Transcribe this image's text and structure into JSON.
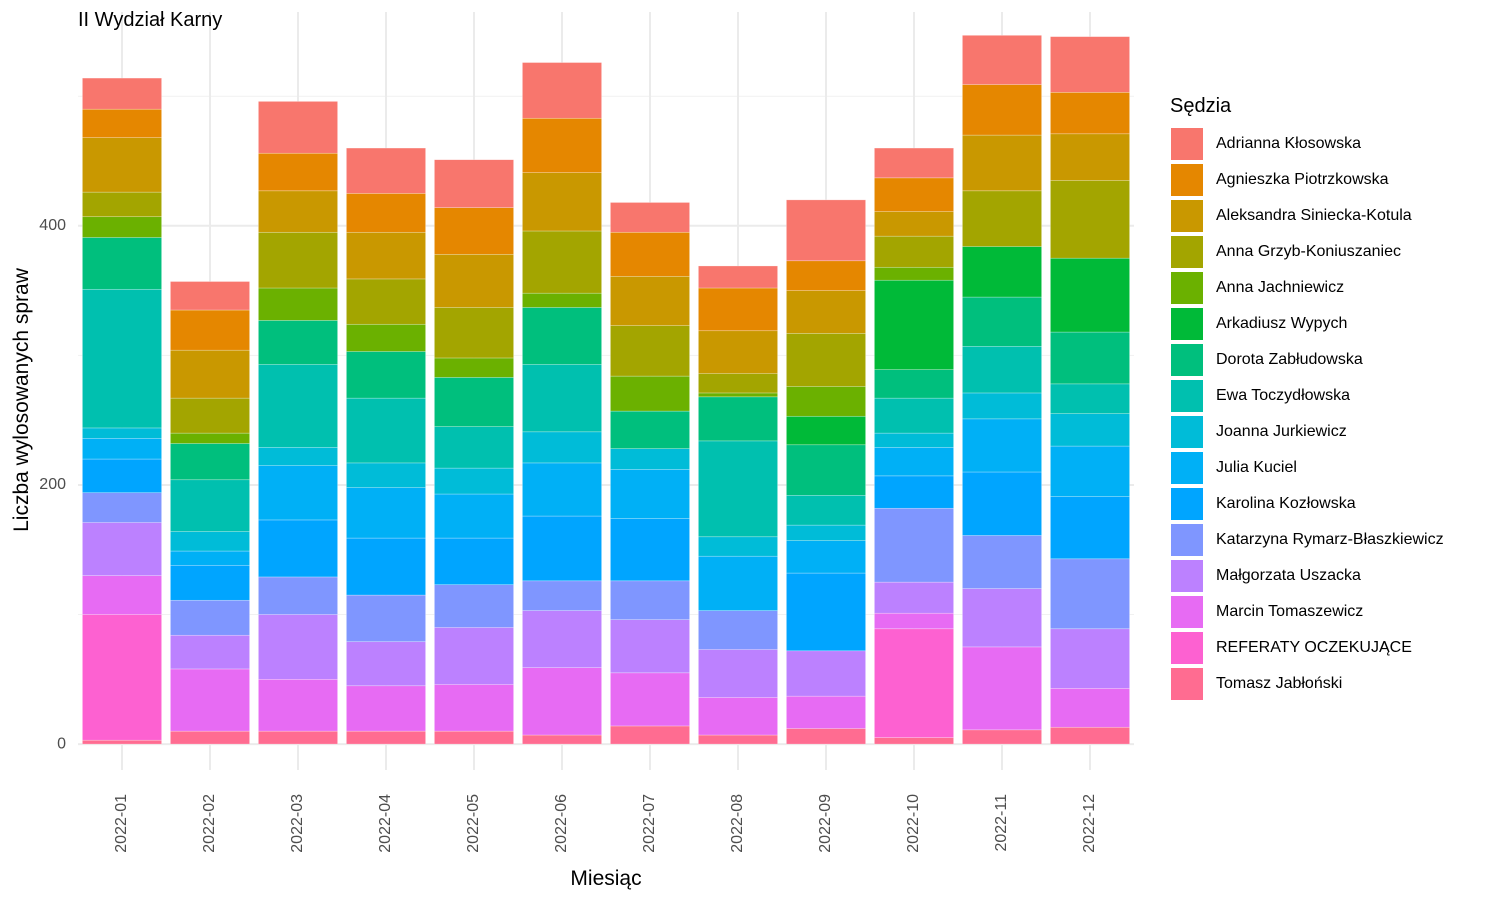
{
  "chart_data": {
    "type": "bar",
    "stacked": true,
    "title": "II Wydział Karny",
    "xlabel": "Miesiąc",
    "ylabel": "Liczba wylosowanych spraw",
    "ylim": [
      -20,
      565
    ],
    "yticks": [
      0,
      200,
      400
    ],
    "grid": true,
    "legend_position": "right",
    "legend_title": "Sędzia",
    "categories": [
      "2022-01",
      "2022-02",
      "2022-03",
      "2022-04",
      "2022-05",
      "2022-06",
      "2022-07",
      "2022-08",
      "2022-09",
      "2022-10",
      "2022-11",
      "2022-12"
    ],
    "series": [
      {
        "name": "Adrianna Kłosowska",
        "color": "#F8766D",
        "values": [
          24,
          22,
          40,
          35,
          37,
          43,
          23,
          17,
          47,
          23,
          38,
          43
        ]
      },
      {
        "name": "Agnieszka Piotrzkowska",
        "color": "#E58700",
        "values": [
          22,
          31,
          29,
          30,
          36,
          42,
          34,
          33,
          23,
          26,
          39,
          32
        ]
      },
      {
        "name": "Aleksandra Siniecka-Kotula",
        "color": "#C99800",
        "values": [
          42,
          37,
          32,
          36,
          41,
          45,
          38,
          33,
          33,
          19,
          43,
          36
        ]
      },
      {
        "name": "Anna Grzyb-Koniuszaniec",
        "color": "#A3A500",
        "values": [
          19,
          27,
          43,
          35,
          39,
          48,
          39,
          15,
          41,
          24,
          43,
          60
        ]
      },
      {
        "name": "Anna Jachniewicz",
        "color": "#6BB100",
        "values": [
          16,
          8,
          25,
          21,
          15,
          11,
          27,
          3,
          23,
          10,
          0,
          0
        ]
      },
      {
        "name": "Arkadiusz Wypych",
        "color": "#00BA38",
        "values": [
          0,
          0,
          0,
          0,
          0,
          0,
          0,
          0,
          22,
          69,
          39,
          57
        ]
      },
      {
        "name": "Dorota Zabłudowska",
        "color": "#00BF7D",
        "values": [
          40,
          28,
          34,
          36,
          38,
          44,
          29,
          34,
          39,
          22,
          38,
          40
        ]
      },
      {
        "name": "Ewa Toczydłowska",
        "color": "#00C0AF",
        "values": [
          107,
          40,
          64,
          50,
          32,
          52,
          0,
          74,
          23,
          27,
          36,
          23
        ]
      },
      {
        "name": "Joanna Jurkiewicz",
        "color": "#00BCD8",
        "values": [
          8,
          15,
          14,
          19,
          20,
          24,
          16,
          15,
          12,
          11,
          20,
          25
        ]
      },
      {
        "name": "Julia Kuciel",
        "color": "#00B0F6",
        "values": [
          16,
          11,
          42,
          39,
          34,
          41,
          38,
          42,
          25,
          22,
          41,
          39
        ]
      },
      {
        "name": "Karolina Kozłowska",
        "color": "#00A5FF",
        "values": [
          26,
          27,
          44,
          44,
          36,
          50,
          48,
          0,
          60,
          25,
          49,
          48
        ]
      },
      {
        "name": "Katarzyna Rymarz-Błaszkiewicz",
        "color": "#7F96FF",
        "values": [
          23,
          27,
          29,
          36,
          33,
          23,
          30,
          30,
          0,
          57,
          41,
          54
        ]
      },
      {
        "name": "Małgorzata Uszacka",
        "color": "#BC81FF",
        "values": [
          41,
          26,
          50,
          34,
          44,
          44,
          41,
          37,
          35,
          24,
          45,
          46
        ]
      },
      {
        "name": "Marcin Tomaszewicz",
        "color": "#E76BF3",
        "values": [
          30,
          48,
          40,
          35,
          36,
          52,
          41,
          29,
          25,
          12,
          64,
          30
        ]
      },
      {
        "name": "REFERATY OCZEKUJĄCE",
        "color": "#FD61D1",
        "values": [
          97,
          0,
          0,
          0,
          0,
          0,
          0,
          0,
          0,
          84,
          0,
          0
        ]
      },
      {
        "name": "Tomasz Jabłoński",
        "color": "#FF6C91",
        "values": [
          3,
          10,
          10,
          10,
          10,
          7,
          14,
          7,
          12,
          5,
          11,
          13
        ]
      }
    ]
  }
}
